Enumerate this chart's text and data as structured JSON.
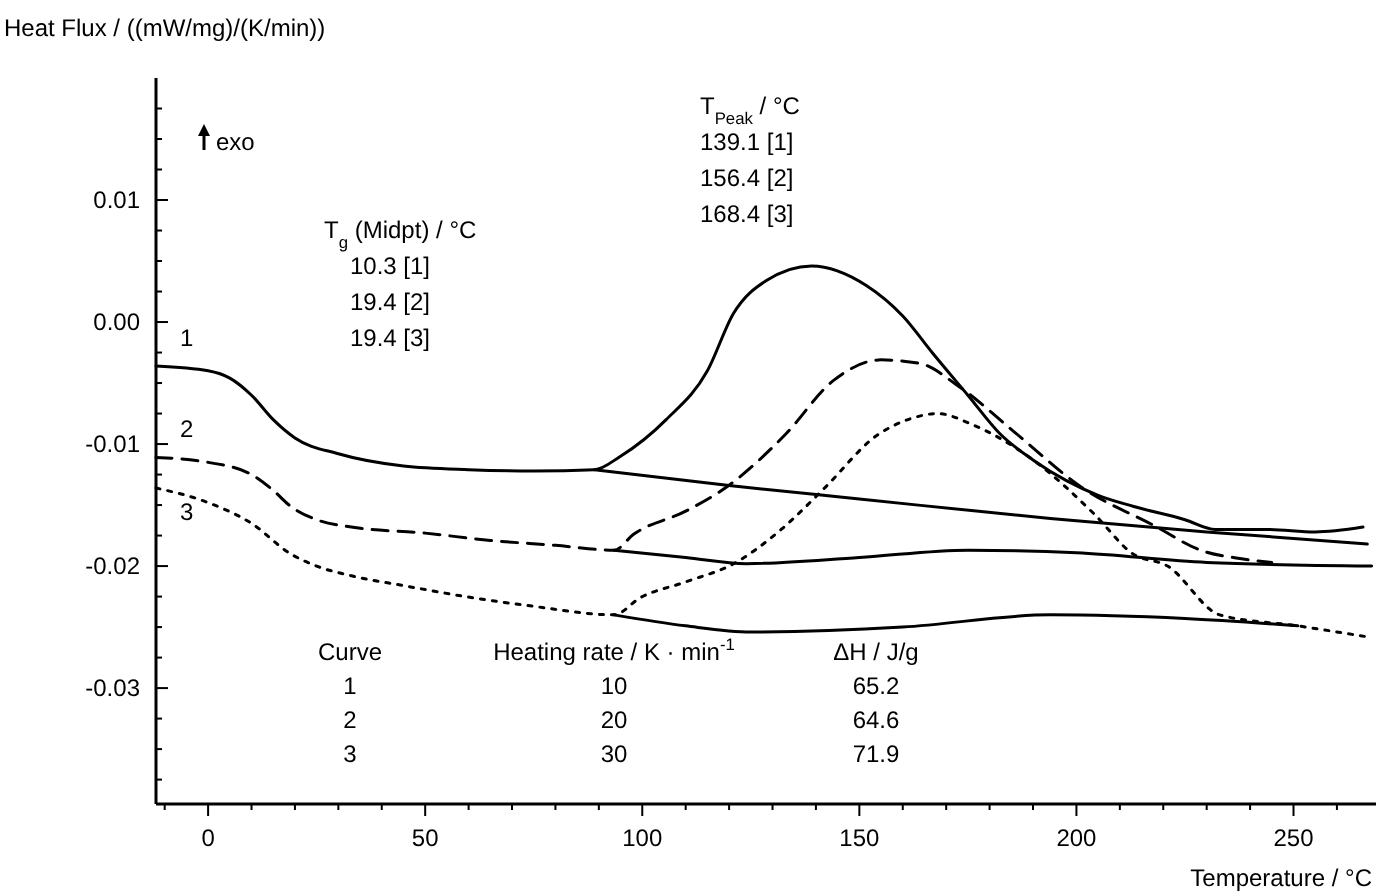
{
  "chart_data": {
    "type": "line",
    "xlabel": "Temperature / °C",
    "ylabel": "Heat Flux / ((mW/mg)/(K/min))",
    "xlim": [
      -12,
      269
    ],
    "ylim": [
      -0.0395,
      0.02
    ],
    "xticks": [
      {
        "value": -10,
        "label": null
      },
      0,
      {
        "value": 10,
        "label": null
      },
      {
        "value": 20,
        "label": null
      },
      {
        "value": 30,
        "label": null
      },
      {
        "value": 40,
        "label": null
      },
      50,
      {
        "value": 60,
        "label": null
      },
      {
        "value": 70,
        "label": null
      },
      {
        "value": 80,
        "label": null
      },
      {
        "value": 90,
        "label": null
      },
      100,
      {
        "value": 110,
        "label": null
      },
      {
        "value": 120,
        "label": null
      },
      {
        "value": 130,
        "label": null
      },
      {
        "value": 140,
        "label": null
      },
      150,
      {
        "value": 160,
        "label": null
      },
      {
        "value": 170,
        "label": null
      },
      {
        "value": 180,
        "label": null
      },
      {
        "value": 190,
        "label": null
      },
      200,
      {
        "value": 210,
        "label": null
      },
      {
        "value": 220,
        "label": null
      },
      {
        "value": 230,
        "label": null
      },
      {
        "value": 240,
        "label": null
      },
      250,
      {
        "value": 260,
        "label": null
      }
    ],
    "yticks": [
      {
        "value": -0.0375,
        "label": null
      },
      {
        "value": -0.035,
        "label": null
      },
      {
        "value": -0.0325,
        "label": null
      },
      -0.03,
      {
        "value": -0.0275,
        "label": null
      },
      {
        "value": -0.025,
        "label": null
      },
      {
        "value": -0.0225,
        "label": null
      },
      -0.02,
      {
        "value": -0.0175,
        "label": null
      },
      {
        "value": -0.015,
        "label": null
      },
      {
        "value": -0.0125,
        "label": null
      },
      -0.01,
      {
        "value": -0.0075,
        "label": null
      },
      {
        "value": -0.005,
        "label": null
      },
      {
        "value": -0.0025,
        "label": null
      },
      {
        "value": 0,
        "label": "0.00"
      },
      {
        "value": 0.0025,
        "label": null
      },
      {
        "value": 0.005,
        "label": null
      },
      {
        "value": 0.0075,
        "label": null
      },
      0.01,
      {
        "value": 0.0125,
        "label": null
      },
      {
        "value": 0.015,
        "label": null
      },
      {
        "value": 0.0175,
        "label": null
      }
    ],
    "grid": false,
    "marker": "none",
    "series": [
      {
        "name": "1",
        "color": "#000000",
        "line_style": "solid",
        "x": [
          -12,
          0,
          5,
          10,
          15,
          20,
          30,
          45,
          60,
          75,
          89,
          95,
          105.5,
          115,
          121,
          128.6,
          139,
          151.6,
          160,
          167,
          175,
          182.5,
          190,
          197.7,
          205,
          213,
          225,
          232,
          244,
          255,
          266
        ],
        "values": [
          -0.0036,
          -0.004,
          -0.0046,
          -0.006,
          -0.008,
          -0.0095,
          -0.0108,
          -0.0118,
          -0.0121,
          -0.0122,
          -0.0121,
          -0.011,
          -0.008,
          -0.004,
          0.0007,
          0.0034,
          0.0046,
          0.003,
          0.0005,
          -0.0026,
          -0.006,
          -0.0092,
          -0.0113,
          -0.013,
          -0.0142,
          -0.0151,
          -0.0162,
          -0.017,
          -0.017,
          -0.0172,
          -0.0168
        ]
      },
      {
        "name": "2",
        "color": "#000000",
        "line_style": "dashed",
        "x": [
          -12,
          0,
          10,
          15,
          19,
          25,
          33,
          50,
          65,
          80,
          93.5,
          98,
          110,
          119.5,
          133,
          144,
          155,
          164,
          173,
          186,
          201,
          218,
          228.6,
          238,
          245
        ],
        "values": [
          -0.0111,
          -0.0115,
          -0.0125,
          -0.0138,
          -0.0151,
          -0.0162,
          -0.0168,
          -0.0173,
          -0.0179,
          -0.0183,
          -0.0187,
          -0.0174,
          -0.0155,
          -0.0135,
          -0.0092,
          -0.0048,
          -0.0031,
          -0.0034,
          -0.0053,
          -0.0091,
          -0.0135,
          -0.0167,
          -0.0187,
          -0.0194,
          -0.0197
        ]
      },
      {
        "name": "3",
        "color": "#000000",
        "line_style": "dotted",
        "x": [
          -12,
          0,
          10,
          19,
          25,
          33,
          45,
          61,
          75,
          93.5,
          99.5,
          110,
          121.6,
          132,
          142,
          154,
          162,
          168,
          176,
          190,
          204,
          213,
          221,
          233,
          251,
          267
        ],
        "values": [
          -0.0136,
          -0.0148,
          -0.0165,
          -0.019,
          -0.02,
          -0.0208,
          -0.0216,
          -0.0226,
          -0.0233,
          -0.024,
          -0.0226,
          -0.0213,
          -0.0197,
          -0.017,
          -0.0136,
          -0.0093,
          -0.0079,
          -0.0075,
          -0.0084,
          -0.0113,
          -0.0157,
          -0.019,
          -0.02,
          -0.024,
          -0.0249,
          -0.0258
        ]
      },
      {
        "color": "#000000",
        "line_style": "solid",
        "x": [
          89,
          120,
          150,
          194,
          230,
          267
        ],
        "values": [
          -0.0121,
          -0.0134,
          -0.0145,
          -0.0161,
          -0.0172,
          -0.0182
        ]
      },
      {
        "color": "#000000",
        "line_style": "solid",
        "x": [
          93.5,
          110,
          124,
          150,
          175,
          200,
          230,
          268
        ],
        "values": [
          -0.0187,
          -0.0193,
          -0.0198,
          -0.0193,
          -0.0187,
          -0.0189,
          -0.0197,
          -0.02
        ]
      },
      {
        "color": "#000000",
        "line_style": "solid",
        "x": [
          93.5,
          110,
          125,
          160,
          194,
          225,
          251
        ],
        "values": [
          -0.024,
          -0.0249,
          -0.0254,
          -0.025,
          -0.024,
          -0.0243,
          -0.0249
        ]
      }
    ],
    "annotations": [
      "exo",
      "T$_{g}$ (Midpt) / °C",
      "10.3 [1]",
      "19.4 [2]",
      "19.4 [3]",
      "T$_{Peak}$ / °C",
      "139.1 [1]",
      "156.4 [2]",
      "168.4 [3]",
      "Curve",
      "Heating rate / K · min$^{-1}$",
      "ΔH / J/g",
      "1",
      "10",
      "65.2",
      "2",
      "20",
      "64.6",
      "3",
      "30",
      "71.9"
    ]
  }
}
